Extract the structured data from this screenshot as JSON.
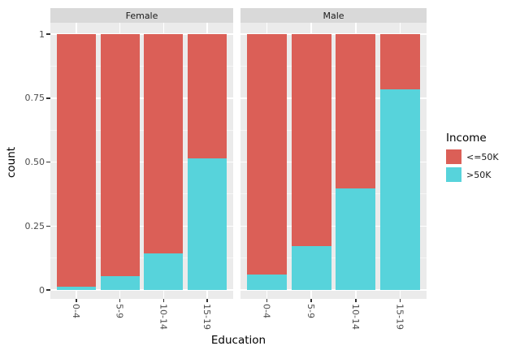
{
  "chart_data": {
    "type": "bar",
    "stacking": "fill-normalized",
    "xlabel": "Education",
    "ylabel": "count",
    "categories": [
      "0-4",
      "5-9",
      "10-14",
      "15-19"
    ],
    "facets": [
      {
        "label": "Female",
        "series": [
          {
            "name": "<=50K",
            "values": [
              0.988,
              0.946,
              0.857,
              0.485
            ]
          },
          {
            "name": ">50K",
            "values": [
              0.012,
              0.054,
              0.143,
              0.515
            ]
          }
        ]
      },
      {
        "label": "Male",
        "series": [
          {
            "name": "<=50K",
            "values": [
              0.939,
              0.827,
              0.604,
              0.217
            ]
          },
          {
            "name": ">50K",
            "values": [
              0.061,
              0.173,
              0.396,
              0.783
            ]
          }
        ]
      }
    ],
    "legend": {
      "title": "Income",
      "entries": [
        {
          "label": "<=50K",
          "color": "#DB5F57"
        },
        {
          "label": ">50K",
          "color": "#57D3DB"
        }
      ],
      "position": "right"
    },
    "y_axis": {
      "range": [
        0,
        1
      ],
      "major_ticks": [
        {
          "label": "1",
          "value": 1
        },
        {
          "label": "0.75",
          "value": 0.75
        },
        {
          "label": "0.50",
          "value": 0.5
        },
        {
          "label": "0.25",
          "value": 0.25
        },
        {
          "label": "0",
          "value": 0
        }
      ],
      "minor_ticks": [
        0.875,
        0.625,
        0.375,
        0.125
      ]
    },
    "grid": true,
    "theme": {
      "figure_bg": "#FFFFFF",
      "panel_bg": "#EBEBEB",
      "strip_bg": "#D9D9D9",
      "grid_color": "#FFFFFF",
      "tick_mark_color": "#333333",
      "axis_text_color": "#4D4D4D",
      "title_text_color": "#000000"
    }
  }
}
